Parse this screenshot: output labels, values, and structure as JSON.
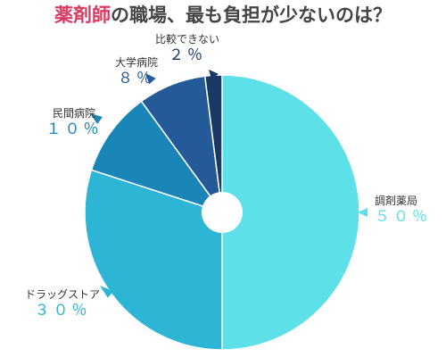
{
  "title": {
    "highlight": "薬剤師",
    "rest": "の職場、最も負担が少ないのは？"
  },
  "chart_data": {
    "type": "pie",
    "categories": [
      "調剤薬局",
      "ドラッグストア",
      "民間病院",
      "大学病院",
      "比較できない"
    ],
    "values": [
      50,
      30,
      10,
      8,
      2
    ],
    "value_labels": [
      "５０％",
      "３０％",
      "１０％",
      "８％",
      "２％"
    ],
    "colors": [
      "#5ee0e8",
      "#2db5d6",
      "#1a86b8",
      "#245a98",
      "#1a3a66"
    ],
    "donut_hole": true,
    "legend": "none"
  }
}
